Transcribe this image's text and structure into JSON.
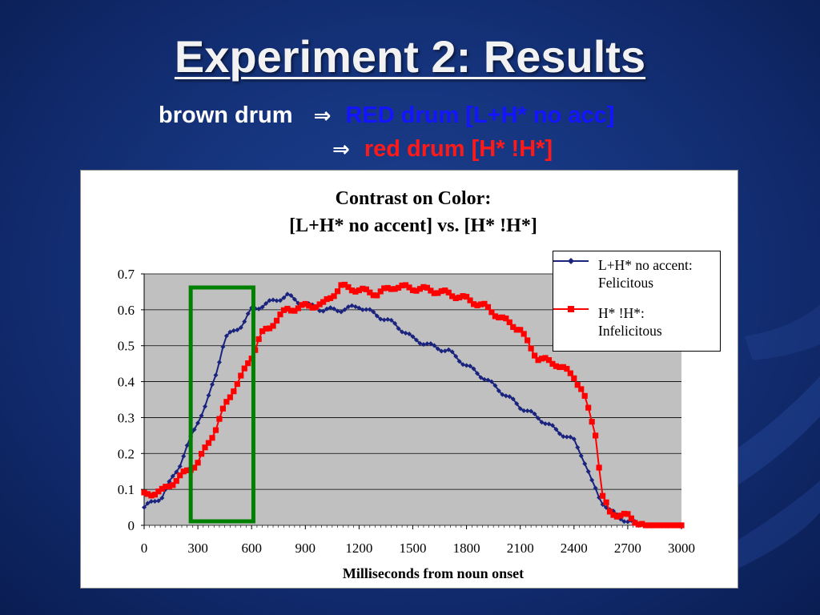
{
  "slide": {
    "title": "Experiment 2: Results",
    "line1_prefix": "brown drum",
    "arrow_glyph": "⇒",
    "line1_target": "RED drum [L+H* no acc]",
    "line2_target": "red drum [H* !H*]"
  },
  "colors": {
    "background": "#16357f",
    "title": "#f2f2f2",
    "blue_text": "#1414ff",
    "red_text": "#ff1a1a",
    "series_blue": "#1a237e",
    "series_red": "#ff0000",
    "plot_area": "#c0c0c0",
    "highlight_box": "#008000"
  },
  "chart_data": {
    "type": "line",
    "title_line1": "Contrast on Color:",
    "title_line2": "[L+H* no accent] vs. [H* !H*]",
    "xlabel": "Milliseconds from noun onset",
    "ylabel": "",
    "xlim": [
      0,
      3000
    ],
    "ylim": [
      0,
      0.7
    ],
    "x_ticks": [
      "0",
      "300",
      "600",
      "900",
      "1200",
      "1500",
      "1800",
      "2100",
      "2400",
      "2700",
      "3000"
    ],
    "y_ticks": [
      "0",
      "0.1",
      "0.2",
      "0.3",
      "0.4",
      "0.5",
      "0.6",
      "0.7"
    ],
    "grid": true,
    "legend_position": "top-right",
    "highlight_range": [
      260,
      610
    ],
    "series": [
      {
        "name_line1": "L+H* no accent:",
        "name_line2": "Felicitous",
        "color": "#1a237e",
        "marker": "diamond",
        "points": [
          [
            0,
            0.05
          ],
          [
            100,
            0.08
          ],
          [
            200,
            0.17
          ],
          [
            300,
            0.29
          ],
          [
            350,
            0.34
          ],
          [
            400,
            0.42
          ],
          [
            450,
            0.52
          ],
          [
            500,
            0.54
          ],
          [
            550,
            0.56
          ],
          [
            600,
            0.6
          ],
          [
            700,
            0.62
          ],
          [
            800,
            0.64
          ],
          [
            850,
            0.625
          ],
          [
            900,
            0.615
          ],
          [
            1000,
            0.6
          ],
          [
            1100,
            0.6
          ],
          [
            1200,
            0.61
          ],
          [
            1300,
            0.585
          ],
          [
            1400,
            0.56
          ],
          [
            1500,
            0.52
          ],
          [
            1600,
            0.5
          ],
          [
            1700,
            0.485
          ],
          [
            1800,
            0.445
          ],
          [
            1900,
            0.41
          ],
          [
            2000,
            0.37
          ],
          [
            2100,
            0.33
          ],
          [
            2200,
            0.3
          ],
          [
            2300,
            0.265
          ],
          [
            2400,
            0.235
          ],
          [
            2450,
            0.19
          ],
          [
            2500,
            0.12
          ],
          [
            2550,
            0.07
          ],
          [
            2600,
            0.04
          ],
          [
            2700,
            0.01
          ],
          [
            2800,
            0.0
          ],
          [
            3000,
            0.0
          ]
        ]
      },
      {
        "name_line1": "H* !H*:",
        "name_line2": "Infelicitous",
        "color": "#ff0000",
        "marker": "square",
        "points": [
          [
            0,
            0.085
          ],
          [
            100,
            0.095
          ],
          [
            200,
            0.135
          ],
          [
            300,
            0.175
          ],
          [
            350,
            0.22
          ],
          [
            400,
            0.27
          ],
          [
            450,
            0.33
          ],
          [
            500,
            0.38
          ],
          [
            550,
            0.42
          ],
          [
            600,
            0.47
          ],
          [
            650,
            0.53
          ],
          [
            700,
            0.55
          ],
          [
            750,
            0.58
          ],
          [
            800,
            0.6
          ],
          [
            900,
            0.61
          ],
          [
            1000,
            0.615
          ],
          [
            1100,
            0.665
          ],
          [
            1200,
            0.655
          ],
          [
            1300,
            0.645
          ],
          [
            1400,
            0.665
          ],
          [
            1500,
            0.66
          ],
          [
            1600,
            0.655
          ],
          [
            1700,
            0.645
          ],
          [
            1800,
            0.63
          ],
          [
            1900,
            0.61
          ],
          [
            2000,
            0.575
          ],
          [
            2100,
            0.545
          ],
          [
            2150,
            0.5
          ],
          [
            2200,
            0.465
          ],
          [
            2300,
            0.45
          ],
          [
            2400,
            0.415
          ],
          [
            2450,
            0.37
          ],
          [
            2500,
            0.29
          ],
          [
            2530,
            0.24
          ],
          [
            2550,
            0.09
          ],
          [
            2600,
            0.035
          ],
          [
            2700,
            0.025
          ],
          [
            2750,
            0.01
          ],
          [
            2800,
            0.0
          ],
          [
            3000,
            0.0
          ]
        ]
      }
    ]
  }
}
